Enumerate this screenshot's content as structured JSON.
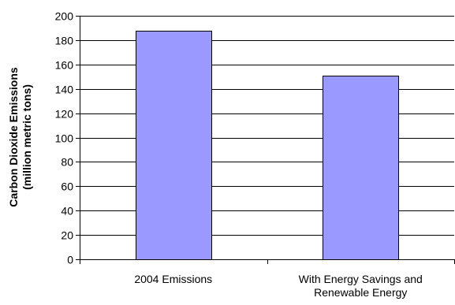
{
  "chart_data": {
    "type": "bar",
    "categories": [
      "2004 Emissions",
      "With Energy Savings and Renewable Energy"
    ],
    "category_label_lines": [
      [
        "2004 Emissions"
      ],
      [
        "With Energy Savings and",
        "Renewable Energy"
      ]
    ],
    "values": [
      188,
      151
    ],
    "ylabel_lines": [
      "Carbon Dioxide Emissions",
      "(million metric tons)"
    ],
    "ylim": [
      0,
      200
    ],
    "yticks": [
      "0",
      "20",
      "40",
      "60",
      "80",
      "100",
      "120",
      "140",
      "160",
      "180",
      "200"
    ],
    "grid": true,
    "bar_color": "#9999ff",
    "bar_edge_color": "#000000",
    "grid_color": "#000000"
  }
}
